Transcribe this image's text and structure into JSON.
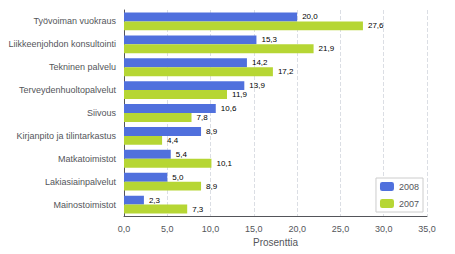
{
  "chart_data": {
    "type": "bar",
    "orientation": "horizontal",
    "categories": [
      "Mainostoimistot",
      "Lakiasiainpalvelut",
      "Matkatoimistot",
      "Kirjanpito ja tilintarkastus",
      "Siivous",
      "Terveydenhuoltopalvelut",
      "Tekninen palvelu",
      "Liikkeenjohdon konsultointi",
      "Työvoiman vuokraus"
    ],
    "series": [
      {
        "name": "2008",
        "values": [
          2.3,
          5.0,
          5.4,
          8.9,
          10.6,
          13.9,
          14.2,
          15.3,
          20.0
        ],
        "value_labels": [
          "2,3",
          "5,0",
          "5,4",
          "8,9",
          "10,6",
          "13,9",
          "14,2",
          "15,3",
          "20,0"
        ]
      },
      {
        "name": "2007",
        "values": [
          7.3,
          8.9,
          10.1,
          4.4,
          7.8,
          11.9,
          17.2,
          21.9,
          27.6
        ],
        "value_labels": [
          "7,3",
          "8,9",
          "10,1",
          "4,4",
          "7,8",
          "11,9",
          "17,2",
          "21,9",
          "27,6"
        ]
      }
    ],
    "xlabel": "Prosenttia",
    "xlim": [
      0,
      35
    ],
    "xticks": [
      {
        "value": 0,
        "label": "0,0"
      },
      {
        "value": 5,
        "label": "5,0"
      },
      {
        "value": 10,
        "label": "10,0"
      },
      {
        "value": 15,
        "label": "15,0"
      },
      {
        "value": 20,
        "label": "20,0"
      },
      {
        "value": 25,
        "label": "25,0"
      },
      {
        "value": 30,
        "label": "30,0"
      },
      {
        "value": 35,
        "label": "35,0"
      }
    ],
    "data_labels": true,
    "grid": true,
    "legend": "lower right"
  }
}
